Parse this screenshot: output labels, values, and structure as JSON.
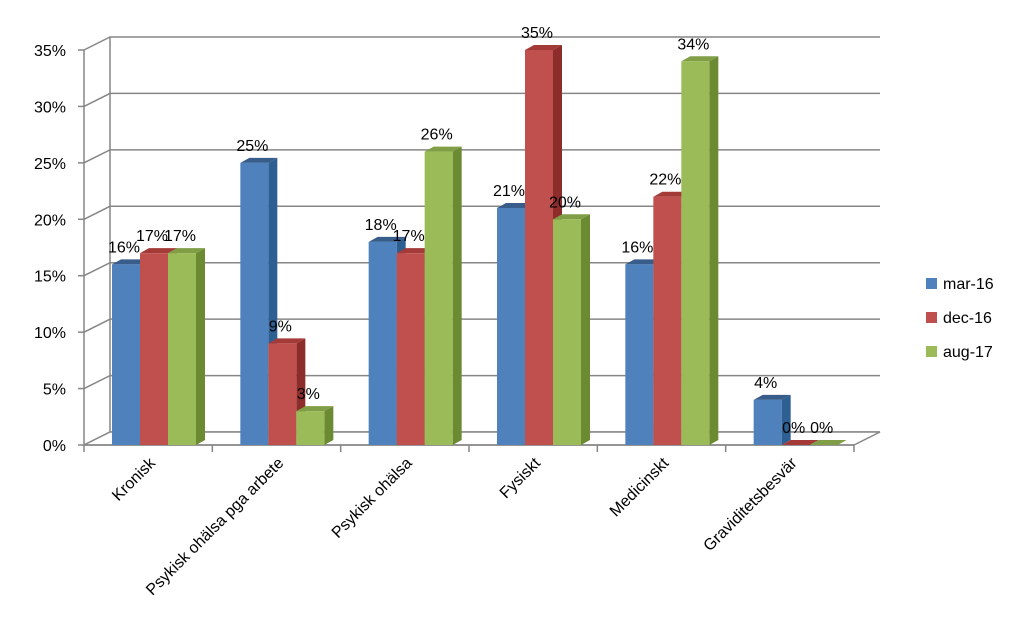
{
  "chart_data": {
    "type": "bar",
    "categories": [
      "Kronisk",
      "Psykisk ohälsa pga arbete",
      "Psykisk ohälsa",
      "Fysiskt",
      "Medicinskt",
      "Graviditetsbesvär"
    ],
    "series": [
      {
        "name": "mar-16",
        "values": [
          16,
          25,
          18,
          21,
          16,
          4
        ],
        "labels": [
          "16%",
          "25%",
          "18%",
          "21%",
          "16%",
          "4%"
        ],
        "color": "#4F81BD",
        "side": "#2E5F92",
        "top": "#385D8A"
      },
      {
        "name": "dec-16",
        "values": [
          17,
          9,
          17,
          35,
          22,
          0
        ],
        "labels": [
          "17%",
          "9%",
          "17%",
          "35%",
          "22%",
          "0%"
        ],
        "color": "#C0504D",
        "side": "#8C2D2B",
        "top": "#A33A37"
      },
      {
        "name": "aug-17",
        "values": [
          17,
          3,
          26,
          20,
          34,
          0
        ],
        "labels": [
          "17%",
          "3%",
          "26%",
          "20%",
          "34%",
          "0%"
        ],
        "color": "#9BBB59",
        "side": "#6B8A32",
        "top": "#7F9E45"
      }
    ],
    "ylim": [
      0,
      35
    ],
    "yticks": [
      "0%",
      "5%",
      "10%",
      "15%",
      "20%",
      "25%",
      "30%",
      "35%"
    ],
    "title": "",
    "xlabel": "",
    "ylabel": "",
    "grid": true,
    "legend_position": "right",
    "three_d": true
  }
}
